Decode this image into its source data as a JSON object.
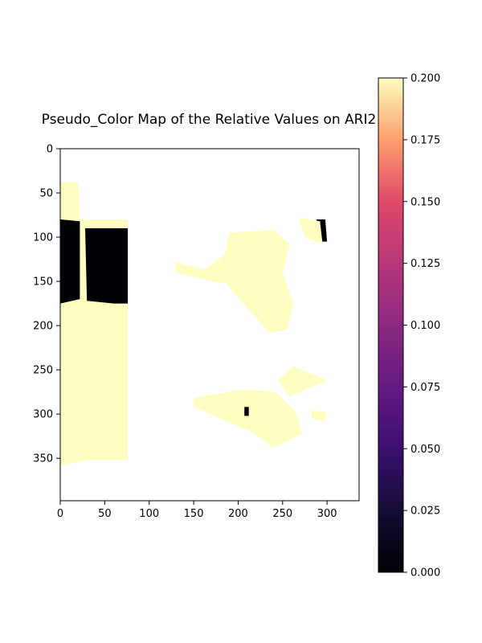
{
  "chart_data": {
    "type": "heatmap",
    "title": "Pseudo_Color Map of the Relative Values on ARI2",
    "xlabel": "",
    "ylabel": "",
    "colormap": "magma",
    "xlim": [
      0,
      336
    ],
    "ylim": [
      398,
      0
    ],
    "x_ticks": [
      0,
      50,
      100,
      150,
      200,
      250,
      300
    ],
    "y_ticks": [
      0,
      50,
      100,
      150,
      200,
      250,
      300,
      350
    ],
    "colorbar": {
      "range": [
        0.0,
        0.2
      ],
      "ticks": [
        "0.000",
        "0.025",
        "0.050",
        "0.075",
        "0.100",
        "0.125",
        "0.150",
        "0.175",
        "0.200"
      ],
      "tick_values": [
        0.0,
        0.025,
        0.05,
        0.075,
        0.1,
        0.125,
        0.15,
        0.175,
        0.2
      ]
    },
    "regions": [
      {
        "name": "left-strip-bright",
        "value": 0.2,
        "polygon": [
          [
            0,
            38
          ],
          [
            20,
            38
          ],
          [
            22,
            80
          ],
          [
            76,
            80
          ],
          [
            76,
            352
          ],
          [
            60,
            352
          ],
          [
            30,
            352
          ],
          [
            0,
            358
          ]
        ]
      },
      {
        "name": "left-strip-dark-block-1",
        "value": 0.0,
        "polygon": [
          [
            0,
            80
          ],
          [
            22,
            82
          ],
          [
            22,
            170
          ],
          [
            0,
            175
          ]
        ]
      },
      {
        "name": "left-strip-dark-block-2",
        "value": 0.0,
        "polygon": [
          [
            28,
            90
          ],
          [
            76,
            90
          ],
          [
            76,
            175
          ],
          [
            60,
            175
          ],
          [
            30,
            172
          ]
        ]
      },
      {
        "name": "plant-upper-main",
        "value": 0.2,
        "polygon": [
          [
            190,
            95
          ],
          [
            240,
            92
          ],
          [
            258,
            108
          ],
          [
            250,
            140
          ],
          [
            262,
            175
          ],
          [
            255,
            205
          ],
          [
            235,
            208
          ],
          [
            210,
            180
          ],
          [
            185,
            150
          ],
          [
            150,
            145
          ],
          [
            185,
            120
          ]
        ]
      },
      {
        "name": "plant-upper-left-leaf",
        "value": 0.2,
        "polygon": [
          [
            128,
            128
          ],
          [
            175,
            140
          ],
          [
            200,
            150
          ],
          [
            180,
            152
          ],
          [
            130,
            140
          ]
        ]
      },
      {
        "name": "plant-upper-right-dark",
        "value": 0.0,
        "polygon": [
          [
            288,
            80
          ],
          [
            298,
            80
          ],
          [
            300,
            105
          ],
          [
            290,
            105
          ]
        ]
      },
      {
        "name": "plant-upper-right-leaf",
        "value": 0.2,
        "polygon": [
          [
            268,
            78
          ],
          [
            292,
            82
          ],
          [
            295,
            108
          ],
          [
            275,
            100
          ]
        ]
      },
      {
        "name": "plant-lower-right-leaf",
        "value": 0.2,
        "polygon": [
          [
            245,
            262
          ],
          [
            262,
            246
          ],
          [
            300,
            262
          ],
          [
            258,
            280
          ]
        ]
      },
      {
        "name": "plant-lower-main",
        "value": 0.2,
        "polygon": [
          [
            150,
            282
          ],
          [
            205,
            272
          ],
          [
            242,
            275
          ],
          [
            265,
            298
          ],
          [
            272,
            322
          ],
          [
            240,
            338
          ],
          [
            215,
            320
          ],
          [
            180,
            305
          ],
          [
            150,
            292
          ]
        ]
      },
      {
        "name": "plant-lower-small-right",
        "value": 0.2,
        "polygon": [
          [
            282,
            296
          ],
          [
            300,
            298
          ],
          [
            298,
            308
          ],
          [
            283,
            305
          ]
        ]
      },
      {
        "name": "plant-lower-dark-spot",
        "value": 0.0,
        "polygon": [
          [
            207,
            292
          ],
          [
            212,
            292
          ],
          [
            212,
            302
          ],
          [
            207,
            302
          ]
        ]
      }
    ]
  }
}
